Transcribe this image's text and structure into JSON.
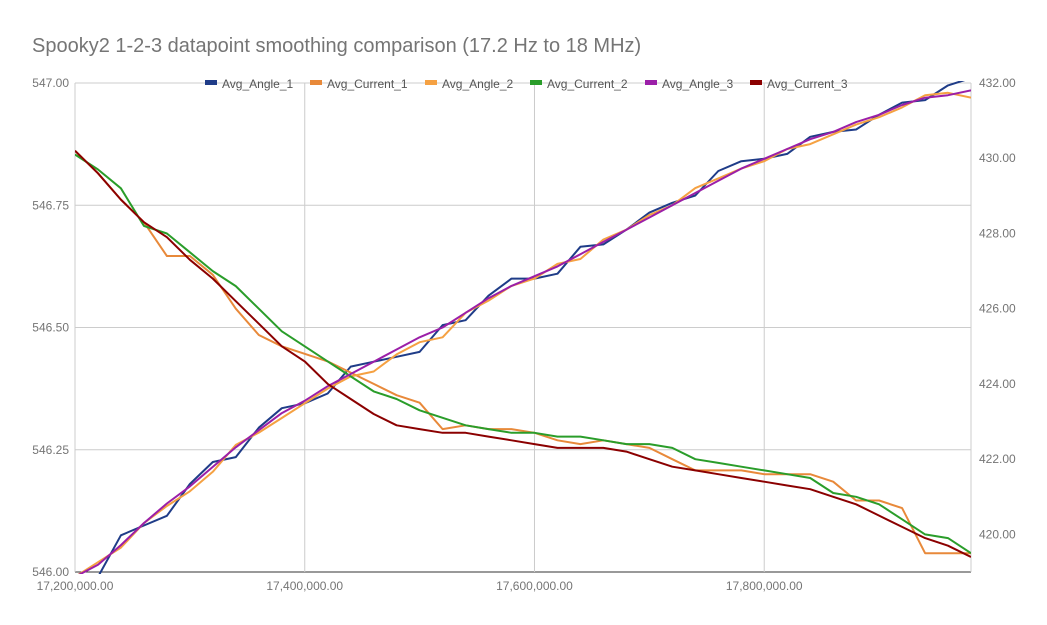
{
  "chart_data": {
    "type": "line",
    "title": "Spooky2 1-2-3 datapoint smoothing comparison (17.2 Hz to 18 MHz)",
    "xlabel": "",
    "ylabel": "",
    "y2label": "",
    "xlim": [
      17200000,
      17980000
    ],
    "ylim_left": [
      546.0,
      547.0
    ],
    "ylim_right": [
      419.0,
      432.0
    ],
    "x_ticks": [
      "17,200,000.00",
      "17,400,000.00",
      "17,600,000.00",
      "17,800,000.00"
    ],
    "x_tick_values": [
      17200000,
      17400000,
      17600000,
      17800000
    ],
    "y_left_ticks": [
      "546.00",
      "546.25",
      "546.50",
      "546.75",
      "547.00"
    ],
    "y_left_tick_values": [
      546.0,
      546.25,
      546.5,
      546.75,
      547.0
    ],
    "y_right_ticks": [
      "420.00",
      "422.00",
      "424.00",
      "426.00",
      "428.00",
      "430.00",
      "432.00"
    ],
    "y_right_tick_values": [
      420,
      422,
      424,
      426,
      428,
      430,
      432
    ],
    "grid": true,
    "legend_position": "top",
    "x": [
      17200000,
      17220000,
      17240000,
      17260000,
      17280000,
      17300000,
      17320000,
      17340000,
      17360000,
      17380000,
      17400000,
      17420000,
      17440000,
      17460000,
      17480000,
      17500000,
      17520000,
      17540000,
      17560000,
      17580000,
      17600000,
      17620000,
      17640000,
      17660000,
      17680000,
      17700000,
      17720000,
      17740000,
      17760000,
      17780000,
      17800000,
      17820000,
      17840000,
      17860000,
      17880000,
      17900000,
      17920000,
      17940000,
      17960000,
      17980000
    ],
    "series": [
      {
        "name": "Avg_Angle_1",
        "axis": "left",
        "color": "#1f3c88",
        "values": [
          545.97,
          545.99,
          546.075,
          546.095,
          546.115,
          546.18,
          546.225,
          546.235,
          546.295,
          546.335,
          546.345,
          546.365,
          546.42,
          546.43,
          546.44,
          546.45,
          546.505,
          546.515,
          546.565,
          546.6,
          546.6,
          546.61,
          546.665,
          546.67,
          546.7,
          546.735,
          546.755,
          546.77,
          546.82,
          546.84,
          546.845,
          546.855,
          546.89,
          546.9,
          546.905,
          546.935,
          546.96,
          546.965,
          546.995,
          547.01
        ]
      },
      {
        "name": "Avg_Current_1",
        "axis": "right",
        "color": "#e8893a",
        "values": [
          430.2,
          429.6,
          428.9,
          428.3,
          427.4,
          427.4,
          426.9,
          426.0,
          425.3,
          425.0,
          424.8,
          424.6,
          424.3,
          424.0,
          423.7,
          423.5,
          422.8,
          422.9,
          422.8,
          422.8,
          422.7,
          422.5,
          422.4,
          422.5,
          422.4,
          422.3,
          422.0,
          421.7,
          421.7,
          421.7,
          421.6,
          421.6,
          421.6,
          421.4,
          420.9,
          420.9,
          420.7,
          419.5,
          419.5,
          419.5
        ]
      },
      {
        "name": "Avg_Angle_2",
        "axis": "left",
        "color": "#f5a142",
        "values": [
          545.99,
          546.02,
          546.05,
          546.1,
          546.135,
          546.165,
          546.205,
          546.26,
          546.285,
          546.315,
          546.345,
          546.375,
          546.4,
          546.41,
          546.445,
          546.47,
          546.48,
          546.53,
          546.555,
          546.585,
          546.6,
          546.63,
          546.64,
          546.68,
          546.7,
          546.73,
          546.75,
          546.785,
          546.805,
          546.825,
          546.84,
          546.865,
          546.875,
          546.895,
          546.915,
          546.93,
          546.95,
          546.975,
          546.98,
          546.97
        ]
      },
      {
        "name": "Avg_Current_2",
        "axis": "right",
        "color": "#2a9d2a",
        "values": [
          430.1,
          429.7,
          429.2,
          428.2,
          428.0,
          427.5,
          427.0,
          426.6,
          426.0,
          425.4,
          425.0,
          424.6,
          424.2,
          423.8,
          423.6,
          423.3,
          423.1,
          422.9,
          422.8,
          422.7,
          422.7,
          422.6,
          422.6,
          422.5,
          422.4,
          422.4,
          422.3,
          422.0,
          421.9,
          421.8,
          421.7,
          421.6,
          421.5,
          421.1,
          421.0,
          420.8,
          420.4,
          420.0,
          419.9,
          419.5
        ]
      },
      {
        "name": "Avg_Angle_3",
        "axis": "left",
        "color": "#9b1fa8",
        "values": [
          545.99,
          546.015,
          546.055,
          546.1,
          546.14,
          546.175,
          546.215,
          546.255,
          546.29,
          546.325,
          546.35,
          546.38,
          546.405,
          546.43,
          546.455,
          546.48,
          546.5,
          546.53,
          546.56,
          546.585,
          546.605,
          546.625,
          546.65,
          546.675,
          546.7,
          546.725,
          546.75,
          546.775,
          546.8,
          546.825,
          546.845,
          546.865,
          546.885,
          546.9,
          546.92,
          546.935,
          546.955,
          546.97,
          546.975,
          546.985
        ]
      },
      {
        "name": "Avg_Current_3",
        "axis": "right",
        "color": "#8b0000",
        "values": [
          430.2,
          429.6,
          428.9,
          428.3,
          427.9,
          427.3,
          426.8,
          426.2,
          425.6,
          425.0,
          424.6,
          424.0,
          423.6,
          423.2,
          422.9,
          422.8,
          422.7,
          422.7,
          422.6,
          422.5,
          422.4,
          422.3,
          422.3,
          422.3,
          422.2,
          422.0,
          421.8,
          421.7,
          421.6,
          421.5,
          421.4,
          421.3,
          421.2,
          421.0,
          420.8,
          420.5,
          420.2,
          419.9,
          419.7,
          419.4
        ]
      }
    ]
  }
}
